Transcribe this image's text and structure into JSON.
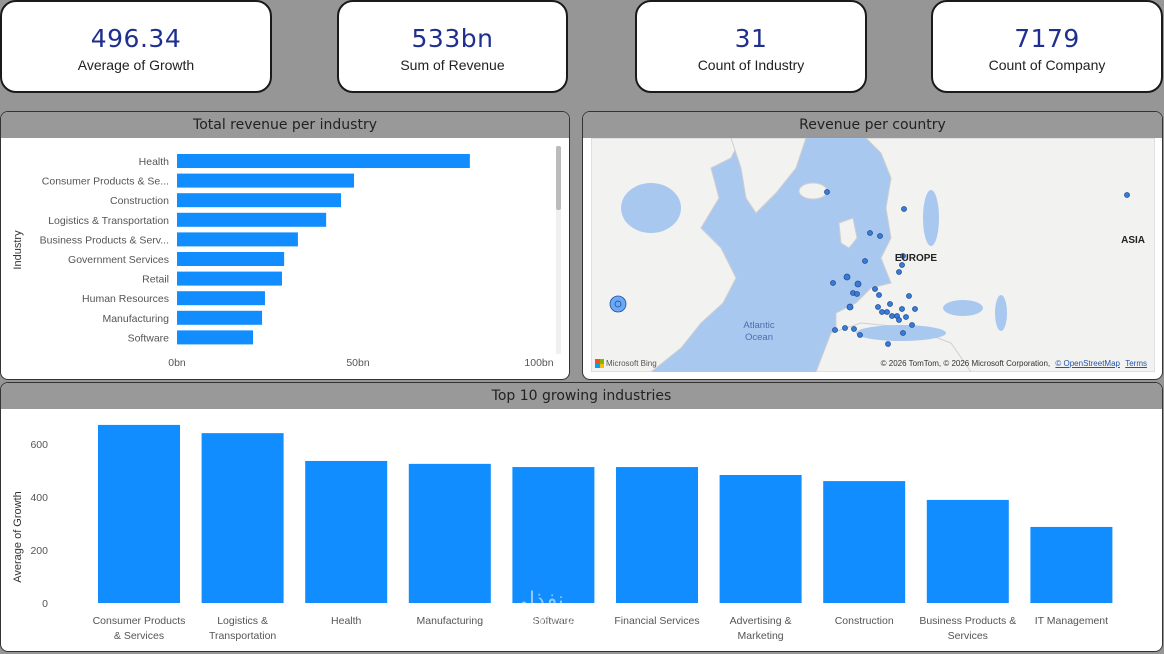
{
  "kpis": [
    {
      "value": "496.34",
      "label": "Average of Growth"
    },
    {
      "value": "533bn",
      "label": "Sum of Revenue"
    },
    {
      "value": "31",
      "label": "Count of Industry"
    },
    {
      "value": "7179",
      "label": "Count of Company"
    }
  ],
  "colors": {
    "bar": "#118DFF",
    "kpi_value": "#1f2f8f",
    "panel_header": "#999999",
    "background": "#969696"
  },
  "revenue_panel": {
    "title": "Total revenue per industry"
  },
  "map_panel": {
    "title": "Revenue per country",
    "labels": {
      "europe": "EUROPE",
      "asia": "ASIA",
      "ocean": "Atlantic Ocean"
    },
    "attribution": "© 2026 TomTom, © 2026 Microsoft Corporation,",
    "osm_link": "© OpenStreetMap",
    "terms_link": "Terms",
    "bing": "Microsoft Bing"
  },
  "growth_panel": {
    "title": "Top 10 growing industries"
  },
  "watermark": {
    "arabic": "نفذلي",
    "latin": "nafezly.com"
  },
  "chart_data": [
    {
      "type": "bar",
      "orientation": "horizontal",
      "title": "Total revenue per industry",
      "xlabel": "",
      "ylabel": "Industry",
      "categories": [
        "Health",
        "Consumer Products & Se...",
        "Construction",
        "Logistics & Transportation",
        "Business Products & Serv...",
        "Government Services",
        "Retail",
        "Human Resources",
        "Manufacturing",
        "Software"
      ],
      "values": [
        80.9,
        48.9,
        45.3,
        41.2,
        33.4,
        29.6,
        29.0,
        24.3,
        23.5,
        21.0
      ],
      "unit": "bn",
      "xlim": [
        0,
        100
      ],
      "ticks": [
        "0bn",
        "50bn",
        "100bn"
      ],
      "tick_values": [
        0,
        50,
        100
      ],
      "scrollbar": true
    },
    {
      "type": "bar",
      "orientation": "vertical",
      "title": "Top 10 growing industries",
      "xlabel": "",
      "ylabel": "Average of Growth",
      "categories": [
        "Consumer Products & Services",
        "Logistics & Transportation",
        "Health",
        "Manufacturing",
        "Software",
        "Financial Services",
        "Advertising & Marketing",
        "Construction",
        "Business Products & Services",
        "IT Management"
      ],
      "category_lines": [
        [
          "Consumer Products",
          "& Services"
        ],
        [
          "Logistics &",
          "Transportation"
        ],
        [
          "Health"
        ],
        [
          "Manufacturing"
        ],
        [
          "Software"
        ],
        [
          "Financial Services"
        ],
        [
          "Advertising &",
          "Marketing"
        ],
        [
          "Construction"
        ],
        [
          "Business Products &",
          "Services"
        ],
        [
          "IT Management"
        ]
      ],
      "values": [
        672,
        641,
        536,
        525,
        513,
        513,
        483,
        460,
        389,
        287
      ],
      "ylim": [
        0,
        700
      ],
      "ticks": [
        "0",
        "200",
        "400",
        "600"
      ],
      "tick_values": [
        0,
        200,
        400,
        600
      ]
    }
  ]
}
